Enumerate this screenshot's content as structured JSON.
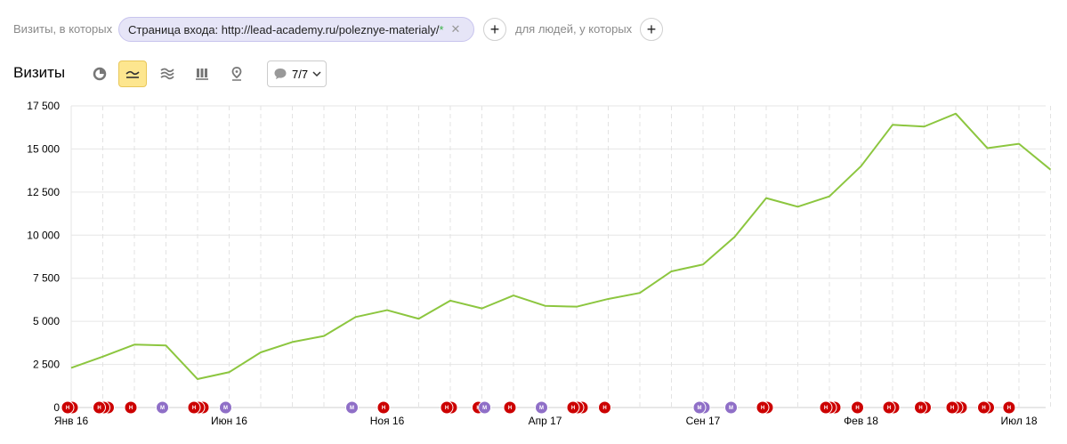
{
  "filters": {
    "visits_label": "Визиты, в которых",
    "chip_text": "Страница входа: http://lead-academy.ru/poleznye-materialy/",
    "chip_star": "*",
    "people_label": "для людей, у которых",
    "add_symbol": "+"
  },
  "header": {
    "title": "Визиты",
    "annotations_count": "7/7"
  },
  "colors": {
    "line": "#8cc63f",
    "red": "#cc0000",
    "purple": "#8f6fc7",
    "active_btn": "#fde68f"
  },
  "chart_data": {
    "type": "line",
    "title": "",
    "xlabel": "",
    "ylabel": "",
    "ylim": [
      0,
      17500
    ],
    "yticks": [
      "0",
      "2 500",
      "5 000",
      "7 500",
      "10 000",
      "12 500",
      "15 000",
      "17 500"
    ],
    "ytick_values": [
      0,
      2500,
      5000,
      7500,
      10000,
      12500,
      15000,
      17500
    ],
    "x": [
      "2016-01",
      "2016-02",
      "2016-03",
      "2016-04",
      "2016-05",
      "2016-06",
      "2016-07",
      "2016-08",
      "2016-09",
      "2016-10",
      "2016-11",
      "2016-12",
      "2017-01",
      "2017-02",
      "2017-03",
      "2017-04",
      "2017-05",
      "2017-06",
      "2017-07",
      "2017-08",
      "2017-09",
      "2017-10",
      "2017-11",
      "2017-12",
      "2018-01",
      "2018-02",
      "2018-03",
      "2018-04",
      "2018-05",
      "2018-06",
      "2018-07",
      "2018-08"
    ],
    "xtick_labels": [
      "Янв 16",
      "Июн 16",
      "Ноя 16",
      "Апр 17",
      "Сен 17",
      "Фев 18",
      "Июл 18"
    ],
    "xtick_index": [
      0,
      5,
      10,
      15,
      20,
      25,
      30
    ],
    "series": [
      {
        "values": [
          2300,
          2950,
          3650,
          3600,
          1650,
          2050,
          3200,
          3800,
          4150,
          5250,
          5650,
          5150,
          6200,
          5750,
          6500,
          5900,
          5850,
          6300,
          6650,
          7900,
          8300,
          9900,
          12150,
          11650,
          12250,
          14000,
          16400,
          16300,
          17050,
          15050,
          15300,
          13800
        ]
      }
    ],
    "annotations": [
      {
        "t": 0.0,
        "c": "red",
        "n": 2
      },
      {
        "t": 1.0,
        "c": "red",
        "n": 3
      },
      {
        "t": 2.0,
        "c": "red",
        "n": 1
      },
      {
        "t": 3.0,
        "c": "purple",
        "n": 1
      },
      {
        "t": 4.0,
        "c": "red",
        "n": 3
      },
      {
        "t": 5.0,
        "c": "purple",
        "n": 1
      },
      {
        "t": 9.0,
        "c": "purple",
        "n": 1
      },
      {
        "t": 10.0,
        "c": "red",
        "n": 1
      },
      {
        "t": 12.0,
        "c": "red",
        "n": 2
      },
      {
        "t": 13.0,
        "c": "red",
        "n": 2
      },
      {
        "t": 13.2,
        "c": "purple",
        "n": 1
      },
      {
        "t": 14.0,
        "c": "red",
        "n": 1
      },
      {
        "t": 15.0,
        "c": "purple",
        "n": 1
      },
      {
        "t": 16.0,
        "c": "red",
        "n": 3
      },
      {
        "t": 17.0,
        "c": "red",
        "n": 1
      },
      {
        "t": 20.0,
        "c": "purple",
        "n": 2
      },
      {
        "t": 21.0,
        "c": "purple",
        "n": 1
      },
      {
        "t": 22.0,
        "c": "red",
        "n": 2
      },
      {
        "t": 24.0,
        "c": "red",
        "n": 3
      },
      {
        "t": 25.0,
        "c": "red",
        "n": 1
      },
      {
        "t": 26.0,
        "c": "red",
        "n": 2
      },
      {
        "t": 27.0,
        "c": "red",
        "n": 2
      },
      {
        "t": 28.0,
        "c": "red",
        "n": 3
      },
      {
        "t": 29.0,
        "c": "red",
        "n": 2
      },
      {
        "t": 29.8,
        "c": "red",
        "n": 1
      }
    ],
    "annotation_letters": {
      "red": "Н",
      "purple": "М"
    },
    "grid": true
  }
}
